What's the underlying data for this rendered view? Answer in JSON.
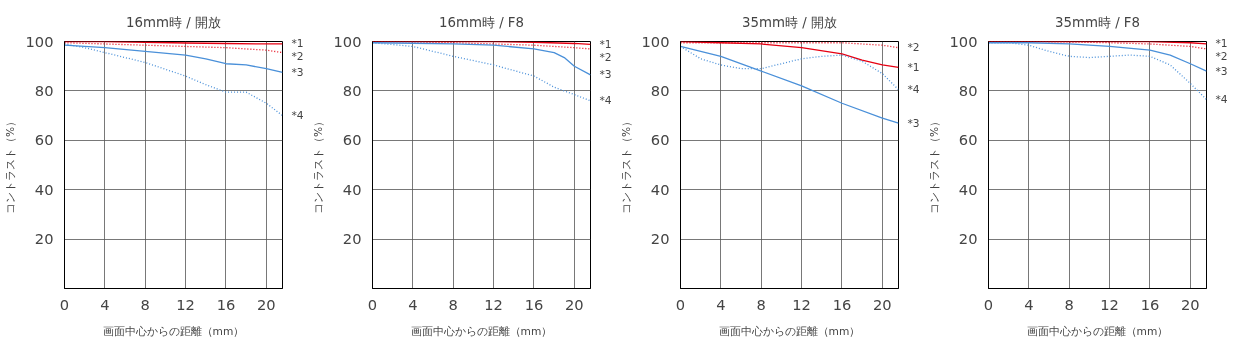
{
  "chart_data": [
    {
      "type": "line",
      "title": "16mm時 / 開放",
      "xlabel": "画面中心からの距離（mm）",
      "ylabel": "コントラスト（%）",
      "xlim": [
        0,
        21.6
      ],
      "ylim": [
        0,
        100
      ],
      "xticks": [
        0,
        4,
        8,
        12,
        16,
        20
      ],
      "yticks": [
        20,
        40,
        60,
        80,
        100
      ],
      "grid": true,
      "legend": false,
      "marker": "none",
      "series": [
        {
          "name": "*1",
          "color": "#e60012",
          "line_style": "solid",
          "x": [
            0,
            4,
            8,
            12,
            16,
            20,
            21.6
          ],
          "values": [
            100,
            100,
            99.7,
            99.4,
            99.2,
            99,
            99
          ]
        },
        {
          "name": "*2",
          "color": "#e60012",
          "line_style": "dotted",
          "x": [
            0,
            4,
            8,
            12,
            16,
            20,
            21.6
          ],
          "values": [
            99.5,
            99,
            98.5,
            98,
            97.5,
            96.5,
            95.5
          ]
        },
        {
          "name": "*3",
          "color": "#4a90d9",
          "line_style": "solid",
          "x": [
            0,
            4,
            8,
            12,
            14,
            16,
            18,
            20,
            21.6
          ],
          "values": [
            98.5,
            97.5,
            96,
            94.5,
            93,
            91,
            90.5,
            89,
            87.5
          ]
        },
        {
          "name": "*4",
          "color": "#4a90d9",
          "line_style": "dotted",
          "x": [
            0,
            2,
            4,
            8,
            12,
            14,
            16,
            18,
            20,
            21.6
          ],
          "values": [
            99,
            97.5,
            95.5,
            91.5,
            86,
            82.5,
            79.5,
            79.5,
            75,
            70
          ]
        }
      ]
    },
    {
      "type": "line",
      "title": "16mm時 / F8",
      "xlabel": "画面中心からの距離（mm）",
      "ylabel": "コントラスト（%）",
      "xlim": [
        0,
        21.6
      ],
      "ylim": [
        0,
        100
      ],
      "xticks": [
        0,
        4,
        8,
        12,
        16,
        20
      ],
      "yticks": [
        20,
        40,
        60,
        80,
        100
      ],
      "grid": true,
      "legend": false,
      "marker": "none",
      "series": [
        {
          "name": "*1",
          "color": "#e60012",
          "line_style": "solid",
          "x": [
            0,
            4,
            8,
            12,
            16,
            20,
            21.6
          ],
          "values": [
            100,
            100,
            100,
            100,
            99.7,
            99.2,
            98.8
          ]
        },
        {
          "name": "*2",
          "color": "#e60012",
          "line_style": "dotted",
          "x": [
            0,
            4,
            8,
            12,
            16,
            20,
            21.6
          ],
          "values": [
            100,
            99.8,
            99.5,
            99,
            98.5,
            97.5,
            97
          ]
        },
        {
          "name": "*3",
          "color": "#4a90d9",
          "line_style": "solid",
          "x": [
            0,
            4,
            8,
            12,
            16,
            18,
            19,
            20,
            21.6
          ],
          "values": [
            99.5,
            99.3,
            99,
            98.5,
            97,
            95.5,
            93.5,
            90,
            86.5
          ]
        },
        {
          "name": "*4",
          "color": "#4a90d9",
          "line_style": "dotted",
          "x": [
            0,
            4,
            8,
            12,
            16,
            18,
            20,
            21.6
          ],
          "values": [
            99.5,
            98,
            94,
            90.5,
            86,
            81.5,
            78.5,
            76
          ]
        }
      ]
    },
    {
      "type": "line",
      "title": "35mm時 / 開放",
      "xlabel": "画面中心からの距離（mm）",
      "ylabel": "コントラスト（%）",
      "xlim": [
        0,
        21.6
      ],
      "ylim": [
        0,
        100
      ],
      "xticks": [
        0,
        4,
        8,
        12,
        16,
        20
      ],
      "yticks": [
        20,
        40,
        60,
        80,
        100
      ],
      "grid": true,
      "legend": false,
      "marker": "none",
      "series": [
        {
          "name": "*1",
          "color": "#e60012",
          "line_style": "solid",
          "x": [
            0,
            4,
            8,
            12,
            16,
            18,
            20,
            21.6
          ],
          "values": [
            100,
            99.5,
            99,
            97.5,
            95,
            92.5,
            90.5,
            89.5
          ]
        },
        {
          "name": "*2",
          "color": "#e60012",
          "line_style": "dotted",
          "x": [
            0,
            8,
            16,
            20,
            21.6
          ],
          "values": [
            99.5,
            99.5,
            99.5,
            98.5,
            97.5
          ]
        },
        {
          "name": "*3",
          "color": "#4a90d9",
          "line_style": "solid",
          "x": [
            0,
            4,
            8,
            12,
            16,
            20,
            21.6
          ],
          "values": [
            98,
            94,
            88,
            82,
            75,
            69,
            67
          ]
        },
        {
          "name": "*4",
          "color": "#4a90d9",
          "line_style": "dotted",
          "x": [
            0,
            2,
            4,
            6,
            8,
            10,
            12,
            14,
            16,
            18,
            20,
            21.6
          ],
          "values": [
            98,
            93,
            90.5,
            89,
            89,
            91,
            93,
            94,
            94.5,
            92,
            87,
            80.5
          ]
        }
      ]
    },
    {
      "type": "line",
      "title": "35mm時 / F8",
      "xlabel": "画面中心からの距離（mm）",
      "ylabel": "コントラスト（%）",
      "xlim": [
        0,
        21.6
      ],
      "ylim": [
        0,
        100
      ],
      "xticks": [
        0,
        4,
        8,
        12,
        16,
        20
      ],
      "yticks": [
        20,
        40,
        60,
        80,
        100
      ],
      "grid": true,
      "legend": false,
      "marker": "none",
      "series": [
        {
          "name": "*1",
          "color": "#e60012",
          "line_style": "solid",
          "x": [
            0,
            4,
            8,
            12,
            16,
            20,
            21.6
          ],
          "values": [
            100,
            100,
            100,
            100,
            100,
            99.5,
            99
          ]
        },
        {
          "name": "*2",
          "color": "#e60012",
          "line_style": "dotted",
          "x": [
            0,
            4,
            8,
            12,
            16,
            20,
            21.6
          ],
          "values": [
            100,
            100,
            99.8,
            99.5,
            99,
            98,
            97
          ]
        },
        {
          "name": "*3",
          "color": "#4a90d9",
          "line_style": "solid",
          "x": [
            0,
            4,
            8,
            12,
            16,
            18,
            20,
            21.6
          ],
          "values": [
            99.5,
            99.5,
            99,
            98,
            96.5,
            94.5,
            91,
            88
          ]
        },
        {
          "name": "*4",
          "color": "#4a90d9",
          "line_style": "dotted",
          "x": [
            0,
            2,
            4,
            6,
            8,
            10,
            12,
            14,
            16,
            18,
            20,
            21.6
          ],
          "values": [
            99.5,
            99.5,
            98.5,
            96,
            94,
            93.5,
            94,
            94.5,
            94,
            90.5,
            83,
            76.5
          ]
        }
      ]
    }
  ]
}
